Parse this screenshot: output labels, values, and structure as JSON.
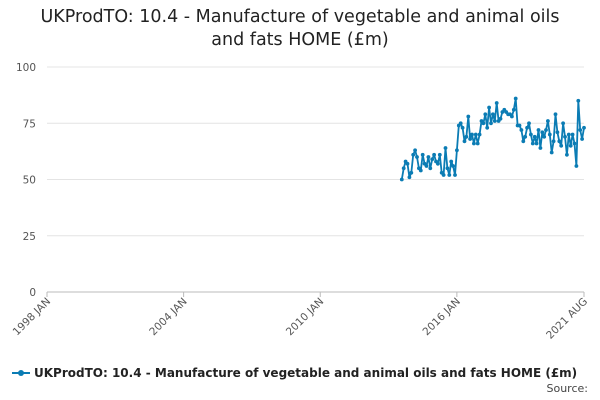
{
  "chart_data": {
    "type": "line",
    "title_lines": [
      "UKProdTO: 10.4 - Manufacture of vegetable and animal oils",
      "and fats HOME (£m)"
    ],
    "xlabel": "",
    "ylabel": "",
    "x_tick_labels": [
      "1998 JAN",
      "2004 JAN",
      "2010 JAN",
      "2016 JAN",
      "2021 AUG"
    ],
    "x_range": [
      "1998-01",
      "2021-08"
    ],
    "y_ticks": [
      0,
      25,
      50,
      75,
      100
    ],
    "ylim": [
      0,
      100
    ],
    "grid": "horizontal",
    "legend_position": "bottom-left",
    "color": "#0b7cb4",
    "series": [
      {
        "name": "UKProdTO: 10.4 - Manufacture of vegetable and animal oils and fats HOME (£m)",
        "points": [
          [
            "2013-08",
            50
          ],
          [
            "2013-09",
            55
          ],
          [
            "2013-10",
            58
          ],
          [
            "2013-11",
            57
          ],
          [
            "2013-12",
            51
          ],
          [
            "2014-01",
            53
          ],
          [
            "2014-02",
            61
          ],
          [
            "2014-03",
            63
          ],
          [
            "2014-04",
            60
          ],
          [
            "2014-05",
            55
          ],
          [
            "2014-06",
            54
          ],
          [
            "2014-07",
            61
          ],
          [
            "2014-08",
            57
          ],
          [
            "2014-09",
            56
          ],
          [
            "2014-10",
            60
          ],
          [
            "2014-11",
            55
          ],
          [
            "2014-12",
            59
          ],
          [
            "2015-01",
            61
          ],
          [
            "2015-02",
            58
          ],
          [
            "2015-03",
            57
          ],
          [
            "2015-04",
            61
          ],
          [
            "2015-05",
            53
          ],
          [
            "2015-06",
            52
          ],
          [
            "2015-07",
            64
          ],
          [
            "2015-08",
            55
          ],
          [
            "2015-09",
            52
          ],
          [
            "2015-10",
            58
          ],
          [
            "2015-11",
            56
          ],
          [
            "2015-12",
            52
          ],
          [
            "2016-01",
            63
          ],
          [
            "2016-02",
            74
          ],
          [
            "2016-03",
            75
          ],
          [
            "2016-04",
            73
          ],
          [
            "2016-05",
            67
          ],
          [
            "2016-06",
            69
          ],
          [
            "2016-07",
            78
          ],
          [
            "2016-08",
            68
          ],
          [
            "2016-09",
            70
          ],
          [
            "2016-10",
            66
          ],
          [
            "2016-11",
            70
          ],
          [
            "2016-12",
            66
          ],
          [
            "2017-01",
            70
          ],
          [
            "2017-02",
            76
          ],
          [
            "2017-03",
            75
          ],
          [
            "2017-04",
            79
          ],
          [
            "2017-05",
            73
          ],
          [
            "2017-06",
            82
          ],
          [
            "2017-07",
            75
          ],
          [
            "2017-08",
            79
          ],
          [
            "2017-09",
            76
          ],
          [
            "2017-10",
            84
          ],
          [
            "2017-11",
            76
          ],
          [
            "2017-12",
            77
          ],
          [
            "2018-01",
            80
          ],
          [
            "2018-02",
            81
          ],
          [
            "2018-03",
            80
          ],
          [
            "2018-04",
            79
          ],
          [
            "2018-05",
            79
          ],
          [
            "2018-06",
            78
          ],
          [
            "2018-07",
            81
          ],
          [
            "2018-08",
            86
          ],
          [
            "2018-09",
            74
          ],
          [
            "2018-10",
            74
          ],
          [
            "2018-11",
            72
          ],
          [
            "2018-12",
            67
          ],
          [
            "2019-01",
            69
          ],
          [
            "2019-02",
            73
          ],
          [
            "2019-03",
            75
          ],
          [
            "2019-04",
            70
          ],
          [
            "2019-05",
            66
          ],
          [
            "2019-06",
            69
          ],
          [
            "2019-07",
            66
          ],
          [
            "2019-08",
            72
          ],
          [
            "2019-09",
            64
          ],
          [
            "2019-10",
            71
          ],
          [
            "2019-11",
            69
          ],
          [
            "2019-12",
            72
          ],
          [
            "2020-01",
            76
          ],
          [
            "2020-02",
            70
          ],
          [
            "2020-03",
            62
          ],
          [
            "2020-04",
            67
          ],
          [
            "2020-05",
            79
          ],
          [
            "2020-06",
            71
          ],
          [
            "2020-07",
            67
          ],
          [
            "2020-08",
            65
          ],
          [
            "2020-09",
            75
          ],
          [
            "2020-10",
            69
          ],
          [
            "2020-11",
            61
          ],
          [
            "2020-12",
            70
          ],
          [
            "2021-01",
            65
          ],
          [
            "2021-02",
            70
          ],
          [
            "2021-03",
            66
          ],
          [
            "2021-04",
            56
          ],
          [
            "2021-05",
            85
          ],
          [
            "2021-06",
            72
          ],
          [
            "2021-07",
            68
          ],
          [
            "2021-08",
            73
          ]
        ]
      }
    ]
  },
  "legend": {
    "label": "UKProdTO: 10.4 - Manufacture of vegetable and animal oils and fats HOME (£m)"
  },
  "source": {
    "label": "Source:"
  }
}
